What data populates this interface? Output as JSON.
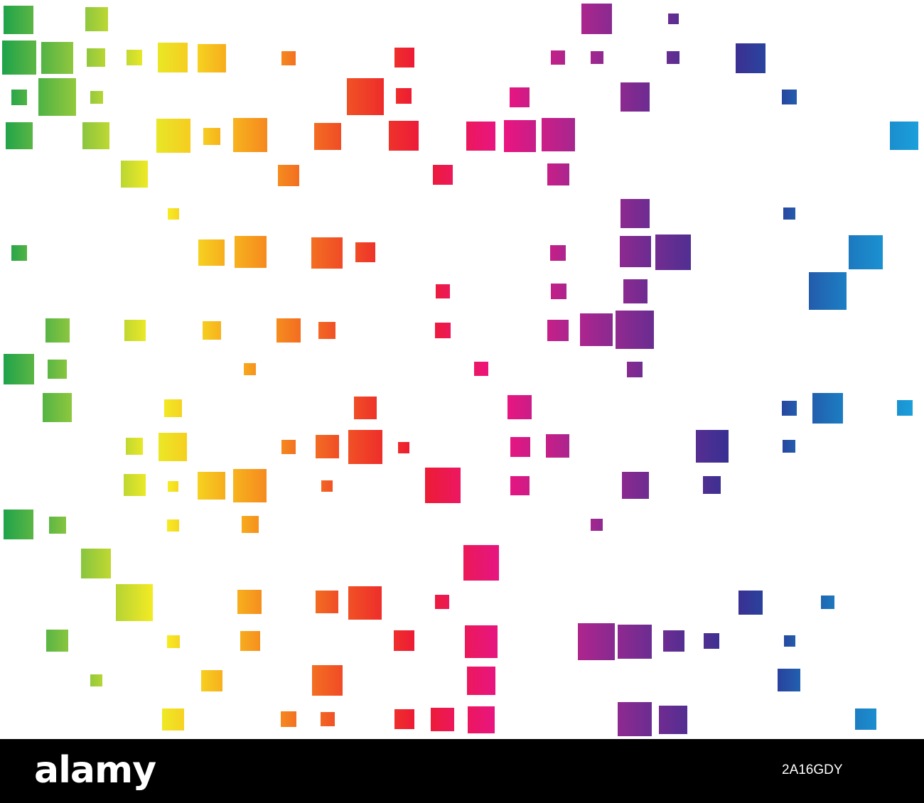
{
  "watermark": {
    "logo_text": "alamy",
    "image_id": "2A16GDY"
  },
  "palette": {
    "stops": [
      "#1aa14a",
      "#8cc63f",
      "#f6ec23",
      "#f7a21c",
      "#f15a24",
      "#ed1c2e",
      "#ec1480",
      "#a6278f",
      "#662d91",
      "#2e3192",
      "#1c75bc",
      "#1b9fdb"
    ],
    "background": "#ffffff",
    "footer": "#000000"
  }
}
